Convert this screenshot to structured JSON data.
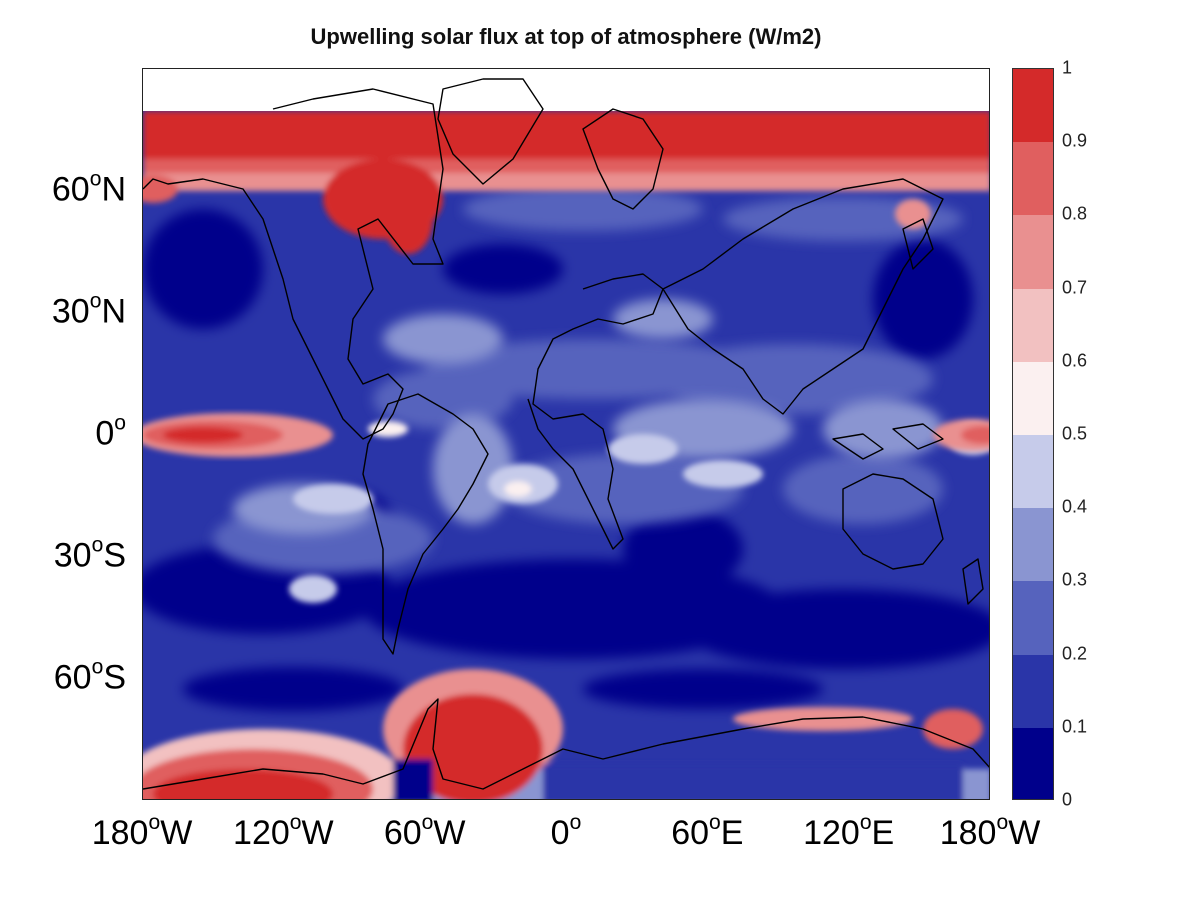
{
  "title": "Upwelling solar flux at top of atmosphere (W/m2)",
  "y_ticks": [
    {
      "deg": "60",
      "hemi": "N",
      "lat": 60
    },
    {
      "deg": "30",
      "hemi": "N",
      "lat": 30
    },
    {
      "deg": "0",
      "hemi": "",
      "lat": 0
    },
    {
      "deg": "30",
      "hemi": "S",
      "lat": -30
    },
    {
      "deg": "60",
      "hemi": "S",
      "lat": -60
    }
  ],
  "x_ticks": [
    {
      "deg": "180",
      "hemi": "W",
      "lon": -180
    },
    {
      "deg": "120",
      "hemi": "W",
      "lon": -120
    },
    {
      "deg": "60",
      "hemi": "W",
      "lon": -60
    },
    {
      "deg": "0",
      "hemi": "",
      "lon": 0
    },
    {
      "deg": "60",
      "hemi": "E",
      "lon": 60
    },
    {
      "deg": "120",
      "hemi": "E",
      "lon": 120
    },
    {
      "deg": "180",
      "hemi": "W",
      "lon": 180
    }
  ],
  "colorbar": {
    "ticks": [
      "0",
      "0.1",
      "0.2",
      "0.3",
      "0.4",
      "0.5",
      "0.6",
      "0.7",
      "0.8",
      "0.9",
      "1"
    ],
    "range": [
      0,
      1
    ],
    "colors": [
      "#00008b",
      "#2a35a8",
      "#5663bd",
      "#8a95d1",
      "#c6cbea",
      "#fbf0f0",
      "#f2c1c1",
      "#e99090",
      "#e05f5f",
      "#d42a2a"
    ]
  },
  "map_extent": {
    "lon": [
      -180,
      180
    ],
    "lat": [
      -90,
      90
    ]
  }
}
